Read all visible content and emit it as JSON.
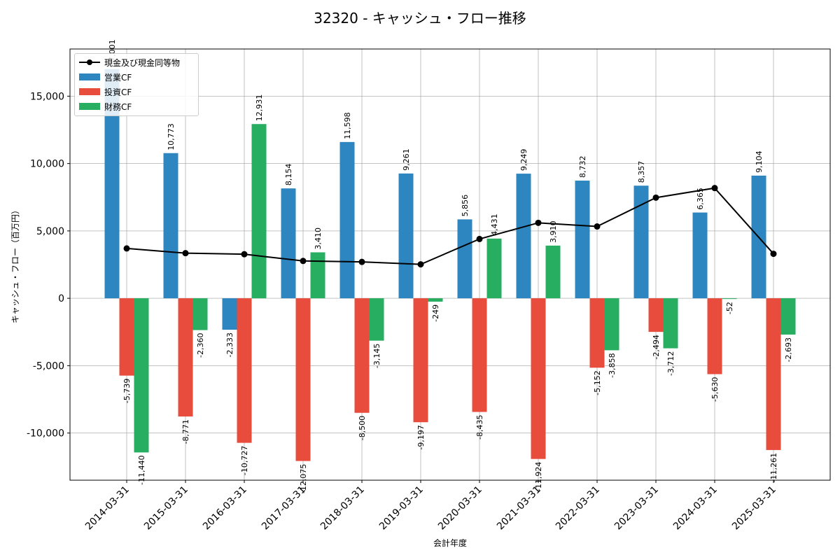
{
  "chart_data": {
    "type": "bar",
    "title": "32320 - キャッシュ・フロー推移",
    "xlabel": "会計年度",
    "ylabel": "キャッシュ・フロー（百万円）",
    "categories": [
      "2014-03-31",
      "2015-03-31",
      "2016-03-31",
      "2017-03-31",
      "2018-03-31",
      "2019-03-31",
      "2020-03-31",
      "2021-03-31",
      "2022-03-31",
      "2023-03-31",
      "2024-03-31",
      "2025-03-31"
    ],
    "ylim": [
      -13500,
      18500
    ],
    "yticks": [
      -10000,
      -5000,
      0,
      5000,
      10000,
      15000
    ],
    "ytick_labels": [
      "-10,000",
      "-5,000",
      "0",
      "5,000",
      "10,000",
      "15,000"
    ],
    "grid": true,
    "legend_position": "top-left",
    "series": [
      {
        "name": "営業CF",
        "kind": "bar",
        "color": "#2e86c1",
        "values": [
          17001,
          10773,
          -2333,
          8154,
          11598,
          9261,
          5856,
          9249,
          8732,
          8357,
          6365,
          9104
        ],
        "labels": [
          "17,001",
          "10,773",
          "-2,333",
          "8,154",
          "11,598",
          "9,261",
          "5,856",
          "9,249",
          "8,732",
          "8,357",
          "6,365",
          "9,104"
        ]
      },
      {
        "name": "投資CF",
        "kind": "bar",
        "color": "#e74c3c",
        "values": [
          -5739,
          -8771,
          -10727,
          -12075,
          -8500,
          -9197,
          -8435,
          -11924,
          -5152,
          -2494,
          -5630,
          -11261
        ],
        "labels": [
          "-5,739",
          "-8,771",
          "-10,727",
          "-12,075",
          "-8,500",
          "-9,197",
          "-8,435",
          "-11,924",
          "-5,152",
          "-2,494",
          "-5,630",
          "-11,261"
        ]
      },
      {
        "name": "財務CF",
        "kind": "bar",
        "color": "#27ae60",
        "values": [
          -11440,
          -2360,
          12931,
          3410,
          -3145,
          -249,
          4431,
          3910,
          -3858,
          -3712,
          -52,
          -2693
        ],
        "labels": [
          "-11,440",
          "-2,360",
          "12,931",
          "3,410",
          "-3,145",
          "-249",
          "4,431",
          "3,910",
          "-3,858",
          "-3,712",
          "-52",
          "-2,693"
        ]
      },
      {
        "name": "現金及び現金同等物",
        "kind": "line",
        "color": "#000000",
        "values": [
          3700,
          3350,
          3270,
          2770,
          2700,
          2520,
          4400,
          5600,
          5330,
          7470,
          8180,
          3300
        ]
      }
    ]
  }
}
